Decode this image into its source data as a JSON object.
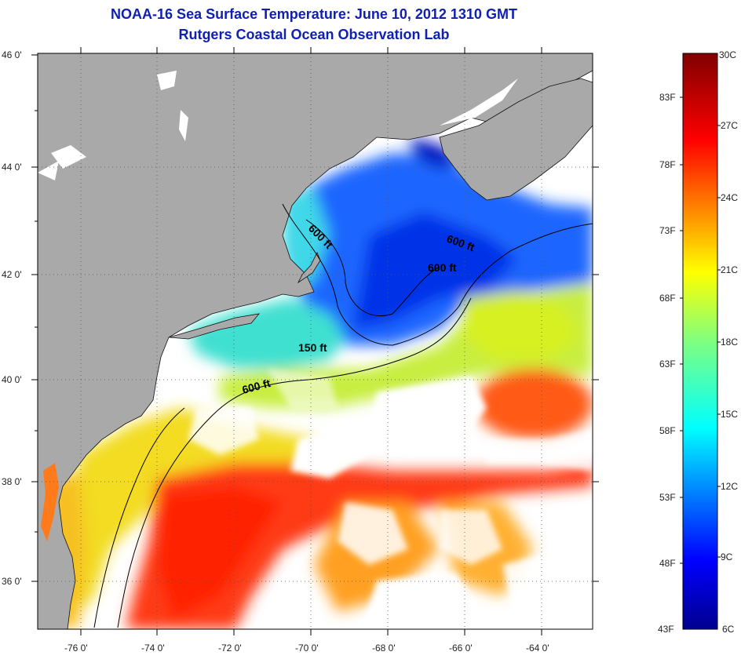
{
  "title_line1": "NOAA-16 Sea Surface Temperature:  June 10, 2012 1310 GMT",
  "title_line2": "Rutgers Coastal Ocean Observation Lab",
  "lat_ticks": [
    "46 0'",
    "44 0'",
    "42 0'",
    "40 0'",
    "38 0'",
    "36 0'"
  ],
  "lon_ticks": [
    "-76 0'",
    "-74 0'",
    "-72 0'",
    "-70 0'",
    "-68 0'",
    "-66 0'",
    "-64 0'"
  ],
  "contour_labels": [
    "600 ft",
    "600 ft",
    "600 ft",
    "150 ft",
    "600 ft"
  ],
  "colorbar": {
    "celsius": [
      "30C",
      "27C",
      "24C",
      "21C",
      "18C",
      "15C",
      "12C",
      "9C",
      "6C"
    ],
    "fahrenheit": [
      "83F",
      "78F",
      "73F",
      "68F",
      "63F",
      "58F",
      "53F",
      "48F",
      "43F"
    ]
  },
  "colors": {
    "land": "#a9a9a9",
    "cloud": "#ffffff",
    "title": "#1020b0"
  }
}
